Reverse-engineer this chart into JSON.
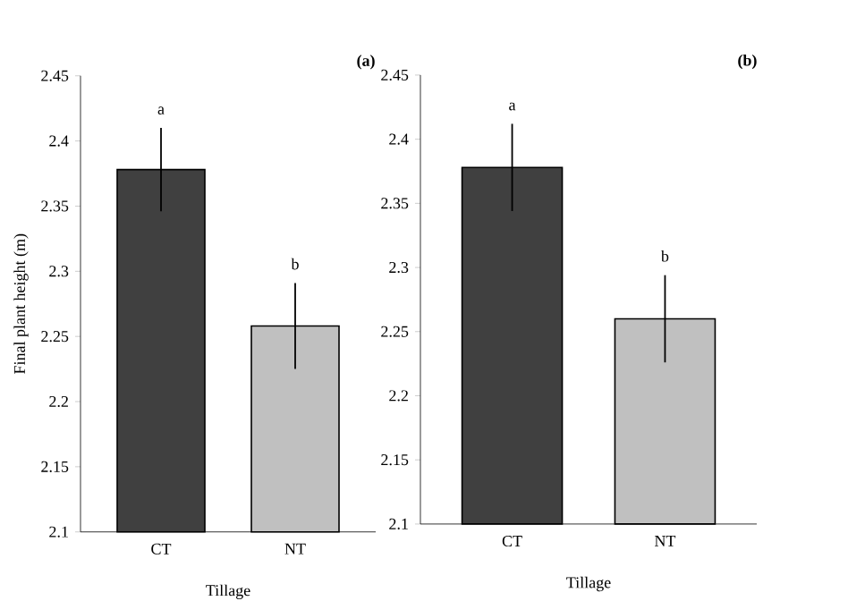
{
  "chart_data": [
    {
      "type": "bar",
      "categories": [
        "CT",
        "NT"
      ],
      "values": [
        2.378,
        2.258
      ],
      "colors": [
        "#404040",
        "#c0c0c0"
      ],
      "errors": [
        0.032,
        0.033
      ],
      "ylim": [
        2.1,
        2.45
      ],
      "yticks": [
        2.1,
        2.15,
        2.2,
        2.25,
        2.3,
        2.35,
        2.4,
        2.45
      ],
      "xlabel": "Tillage",
      "ylabel": "Final plant height (m)",
      "grid": false,
      "annotations": [
        "(a)",
        "a",
        "b"
      ]
    },
    {
      "type": "bar",
      "categories": [
        "CT",
        "NT"
      ],
      "values": [
        2.378,
        2.26
      ],
      "colors": [
        "#404040",
        "#c0c0c0"
      ],
      "errors": [
        0.034,
        0.034
      ],
      "ylim": [
        2.1,
        2.45
      ],
      "yticks": [
        2.1,
        2.15,
        2.2,
        2.25,
        2.3,
        2.35,
        2.4,
        2.45
      ],
      "xlabel": "Tillage",
      "grid": false,
      "annotations": [
        "(b)",
        "a",
        "b"
      ]
    }
  ]
}
